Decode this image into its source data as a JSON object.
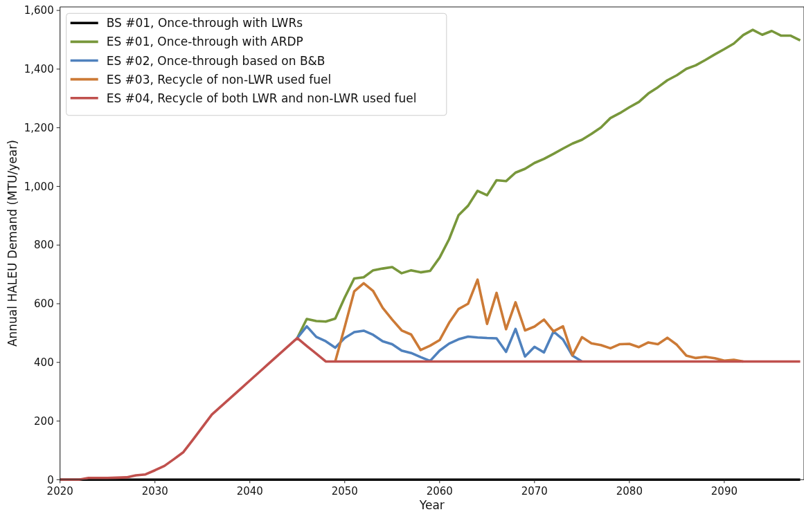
{
  "chart_data": {
    "type": "line",
    "xlabel": "Year",
    "ylabel": "Annual HALEU Demand (MTU/year)",
    "x": [
      2020,
      2021,
      2022,
      2023,
      2024,
      2025,
      2026,
      2027,
      2028,
      2029,
      2030,
      2031,
      2032,
      2033,
      2034,
      2035,
      2036,
      2037,
      2038,
      2039,
      2040,
      2041,
      2042,
      2043,
      2044,
      2045,
      2046,
      2047,
      2048,
      2049,
      2050,
      2051,
      2052,
      2053,
      2054,
      2055,
      2056,
      2057,
      2058,
      2059,
      2060,
      2061,
      2062,
      2063,
      2064,
      2065,
      2066,
      2067,
      2068,
      2069,
      2070,
      2071,
      2072,
      2073,
      2074,
      2075,
      2076,
      2077,
      2078,
      2079,
      2080,
      2081,
      2082,
      2083,
      2084,
      2085,
      2086,
      2087,
      2088,
      2089,
      2090,
      2091,
      2092,
      2093,
      2094,
      2095,
      2096,
      2097,
      2098
    ],
    "series": [
      {
        "name": "BS #01, Once-through with LWRs",
        "color": "#000000",
        "values": [
          0,
          0,
          0,
          0,
          0,
          0,
          0,
          0,
          0,
          0,
          0,
          0,
          0,
          0,
          0,
          0,
          0,
          0,
          0,
          0,
          0,
          0,
          0,
          0,
          0,
          0,
          0,
          0,
          0,
          0,
          0,
          0,
          0,
          0,
          0,
          0,
          0,
          0,
          0,
          0,
          0,
          0,
          0,
          0,
          0,
          0,
          0,
          0,
          0,
          0,
          0,
          0,
          0,
          0,
          0,
          0,
          0,
          0,
          0,
          0,
          0,
          0,
          0,
          0,
          0,
          0,
          0,
          0,
          0,
          0,
          0,
          0,
          0,
          0,
          0,
          0,
          0,
          0,
          0
        ]
      },
      {
        "name": "ES #01, Once-through with ARDP",
        "color": "#78973b",
        "values": [
          null,
          null,
          null,
          null,
          null,
          null,
          null,
          null,
          null,
          null,
          null,
          null,
          null,
          null,
          null,
          null,
          null,
          null,
          null,
          null,
          null,
          null,
          null,
          null,
          null,
          483,
          548,
          541,
          539,
          549,
          621,
          686,
          690,
          714,
          720,
          725,
          704,
          714,
          707,
          712,
          757,
          820,
          902,
          934,
          985,
          970,
          1021,
          1018,
          1047,
          1060,
          1080,
          1094,
          1111,
          1129,
          1146,
          1159,
          1179,
          1201,
          1233,
          1250,
          1270,
          1288,
          1317,
          1338,
          1362,
          1379,
          1401,
          1413,
          1431,
          1450,
          1468,
          1487,
          1516,
          1534,
          1517,
          1530,
          1514,
          1514,
          1498
        ]
      },
      {
        "name": "ES #02, Once-through based on B&B",
        "color": "#4f81bd",
        "values": [
          null,
          null,
          null,
          null,
          null,
          null,
          null,
          null,
          null,
          null,
          null,
          null,
          null,
          null,
          null,
          null,
          null,
          null,
          null,
          null,
          null,
          null,
          null,
          null,
          null,
          483,
          523,
          487,
          472,
          450,
          483,
          503,
          508,
          494,
          472,
          462,
          440,
          432,
          418,
          405,
          440,
          464,
          479,
          488,
          485,
          483,
          482,
          436,
          514,
          420,
          453,
          434,
          505,
          478,
          423,
          403,
          null,
          null,
          null,
          null,
          null,
          null,
          null,
          null,
          null,
          null,
          null,
          null,
          null,
          null,
          null,
          null,
          null,
          null,
          null,
          null,
          null,
          null,
          null
        ]
      },
      {
        "name": "ES #03, Recycle of non-LWR used fuel",
        "color": "#cc7a36",
        "values": [
          null,
          null,
          null,
          null,
          null,
          null,
          null,
          null,
          null,
          null,
          null,
          null,
          null,
          null,
          null,
          null,
          null,
          null,
          null,
          null,
          null,
          null,
          null,
          null,
          null,
          null,
          null,
          null,
          null,
          403,
          521,
          642,
          670,
          643,
          586,
          546,
          509,
          495,
          442,
          457,
          476,
          535,
          582,
          600,
          682,
          531,
          637,
          513,
          605,
          509,
          522,
          546,
          506,
          523,
          424,
          486,
          465,
          459,
          448,
          462,
          463,
          452,
          468,
          462,
          484,
          460,
          423,
          415,
          419,
          414,
          406,
          409,
          403,
          null,
          null,
          null,
          null,
          null,
          null
        ]
      },
      {
        "name": "ES #04, Recycle of both LWR and non-LWR used fuel",
        "color": "#c0504d",
        "values": [
          0,
          0,
          0,
          6,
          6,
          6,
          7,
          8,
          15,
          18,
          32,
          47,
          70,
          94,
          136,
          179,
          222,
          251,
          280,
          309,
          338,
          367,
          396,
          425,
          454,
          483,
          456,
          430,
          403,
          403,
          403,
          403,
          403,
          403,
          403,
          403,
          403,
          403,
          403,
          403,
          403,
          403,
          403,
          403,
          403,
          403,
          403,
          403,
          403,
          403,
          403,
          403,
          403,
          403,
          403,
          403,
          403,
          403,
          403,
          403,
          403,
          403,
          403,
          403,
          403,
          403,
          403,
          403,
          403,
          403,
          403,
          403,
          403,
          403,
          403,
          403,
          403,
          403,
          403
        ]
      }
    ],
    "xlim": [
      2020,
      2098.4
    ],
    "ylim": [
      0,
      1612
    ],
    "xticks": [
      2020,
      2030,
      2040,
      2050,
      2060,
      2070,
      2080,
      2090
    ],
    "yticks": [
      0,
      200,
      400,
      600,
      800,
      {
        "value": 1000,
        "label": "1,000"
      },
      {
        "value": 1200,
        "label": "1,200"
      },
      {
        "value": 1400,
        "label": "1,400"
      },
      {
        "value": 1600,
        "label": "1,600"
      }
    ],
    "legend": "top left"
  }
}
